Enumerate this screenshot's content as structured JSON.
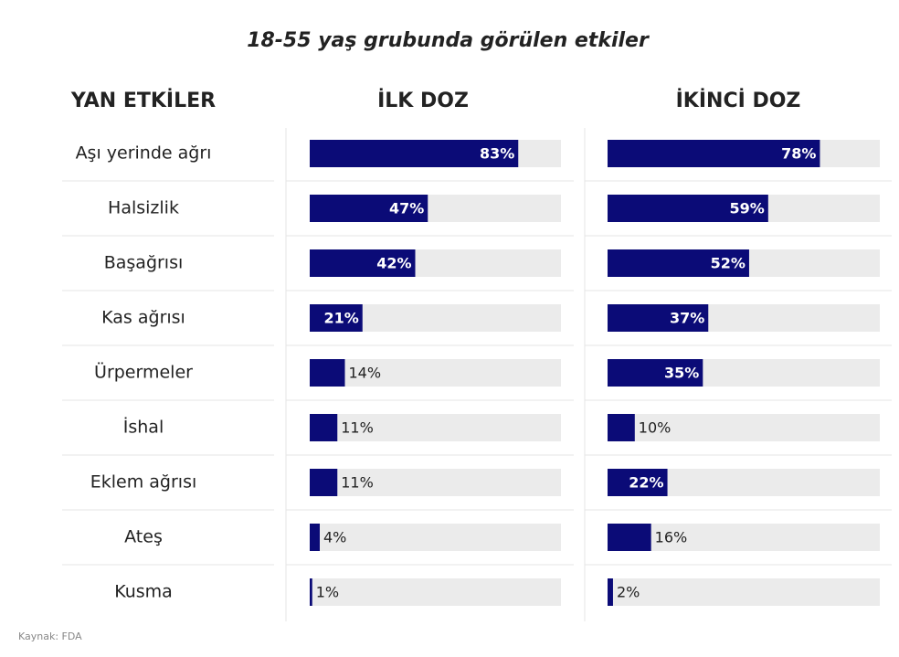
{
  "chart_data": {
    "type": "bar",
    "title": "18-55  yaş grubunda görülen etkiler",
    "category_header": "YAN ETKİLER",
    "categories": [
      "Aşı yerinde ağrı",
      "Halsizlik",
      "Başağrısı",
      "Kas ağrısı",
      "Ürpermeler",
      "İshal",
      "Eklem ağrısı",
      "Ateş",
      "Kusma"
    ],
    "series": [
      {
        "name": "İLK DOZ",
        "color": "#0b0b77",
        "values": [
          83,
          47,
          42,
          21,
          14,
          11,
          11,
          4,
          1
        ],
        "value_labels": [
          "83%",
          "47%",
          "42%",
          "21%",
          "14%",
          "11%",
          "11%",
          "4%",
          "1%"
        ]
      },
      {
        "name": "İKİNCİ DOZ",
        "color": "#0b0b77",
        "values": [
          78,
          59,
          52,
          37,
          35,
          10,
          22,
          16,
          2
        ],
        "value_labels": [
          "78%",
          "59%",
          "52%",
          "37%",
          "35%",
          "10%",
          "22%",
          "16%",
          "2%"
        ]
      }
    ],
    "xlim": [
      0,
      100
    ],
    "track_color": "#ebebeb",
    "source": "Kaynak: FDA"
  }
}
